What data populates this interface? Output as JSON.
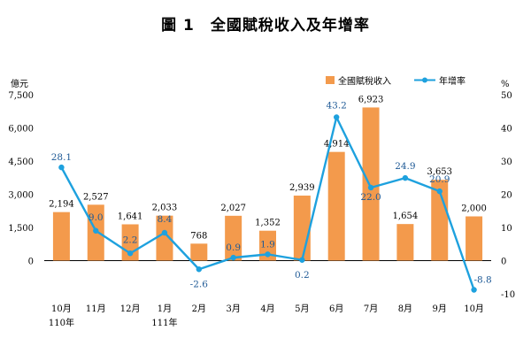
{
  "chart_data": {
    "type": "bar+line",
    "title": "圖 1　全國賦稅收入及年增率",
    "categories": [
      {
        "month": "10月",
        "year": "110年"
      },
      {
        "month": "11月",
        "year": ""
      },
      {
        "month": "12月",
        "year": ""
      },
      {
        "month": "1月",
        "year": "111年"
      },
      {
        "month": "2月",
        "year": ""
      },
      {
        "month": "3月",
        "year": ""
      },
      {
        "month": "4月",
        "year": ""
      },
      {
        "month": "5月",
        "year": ""
      },
      {
        "month": "6月",
        "year": ""
      },
      {
        "month": "7月",
        "year": ""
      },
      {
        "month": "8月",
        "year": ""
      },
      {
        "month": "9月",
        "year": ""
      },
      {
        "month": "10月",
        "year": ""
      }
    ],
    "series": [
      {
        "name": "全國賦稅收入",
        "type": "bar",
        "axis": "left",
        "color": "#f39a4c",
        "values": [
          2194,
          2527,
          1641,
          2033,
          768,
          2027,
          1352,
          2939,
          4914,
          6923,
          1654,
          3653,
          2000
        ],
        "labels": [
          "2,194",
          "2,527",
          "1,641",
          "2,033",
          "768",
          "2,027",
          "1,352",
          "2,939",
          "4,914",
          "6,923",
          "1,654",
          "3,653",
          "2,000"
        ]
      },
      {
        "name": "年增率",
        "type": "line",
        "axis": "right",
        "color": "#1ea1de",
        "label_color": "#1f5a96",
        "values": [
          28.1,
          9.0,
          2.2,
          8.4,
          -2.6,
          0.9,
          1.9,
          0.2,
          43.2,
          22.0,
          24.9,
          20.9,
          -8.8
        ],
        "labels": [
          "28.1",
          "9.0",
          "2.2",
          "8.4",
          "-2.6",
          "0.9",
          "1.9",
          "0.2",
          "43.2",
          "22.0",
          "24.9",
          "20.9",
          "-8.8"
        ]
      }
    ],
    "y_left": {
      "label": "億元",
      "min": -1500,
      "max": 7500,
      "ticks": [
        0,
        1500,
        3000,
        4500,
        6000,
        7500
      ],
      "tick_labels": [
        "0",
        "1,500",
        "3,000",
        "4,500",
        "6,000",
        "7,500"
      ]
    },
    "y_right": {
      "label": "%",
      "min": -10,
      "max": 50,
      "ticks": [
        -10,
        0,
        10,
        20,
        30,
        40,
        50
      ],
      "tick_labels": [
        "-10",
        "0",
        "10",
        "20",
        "30",
        "40",
        "50"
      ]
    },
    "legend": {
      "position": "top-right"
    },
    "grid": false
  }
}
